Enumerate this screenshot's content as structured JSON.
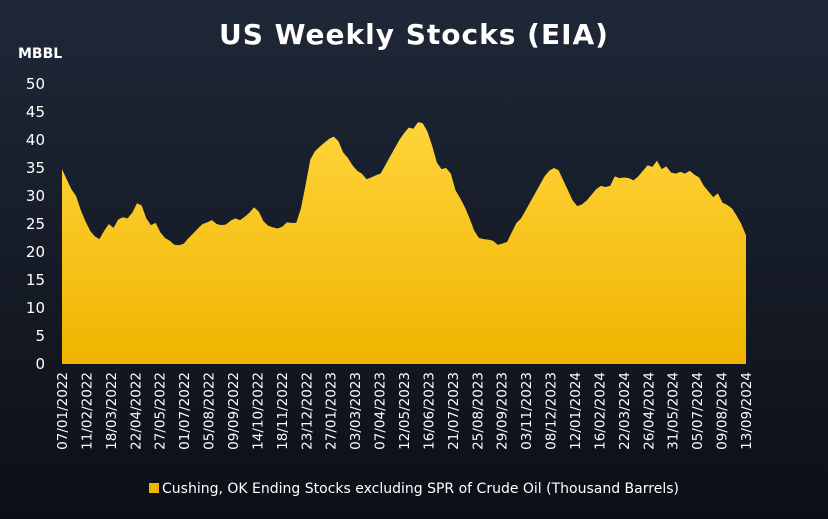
{
  "chart_data": {
    "type": "area",
    "title": "US Weekly Stocks (EIA)",
    "ylabel": "MBBL",
    "ylim": [
      0,
      50
    ],
    "yticks": [
      0,
      5,
      10,
      15,
      20,
      25,
      30,
      35,
      40,
      45,
      50
    ],
    "grid": false,
    "legend_position": "bottom",
    "colors": {
      "fill_top": "#ffd43a",
      "fill_bottom": "#f0b400",
      "background": "#141a26"
    },
    "xtick_labels": [
      "07/01/2022",
      "11/02/2022",
      "18/03/2022",
      "22/04/2022",
      "27/05/2022",
      "01/07/2022",
      "05/08/2022",
      "09/09/2022",
      "14/10/2022",
      "18/11/2022",
      "23/12/2022",
      "27/01/2023",
      "03/03/2023",
      "07/04/2023",
      "12/05/2023",
      "16/06/2023",
      "21/07/2023",
      "25/08/2023",
      "29/09/2023",
      "03/11/2023",
      "08/12/2023",
      "12/01/2024",
      "16/02/2024",
      "22/03/2024",
      "26/04/2024",
      "31/05/2024",
      "05/07/2024",
      "09/08/2024",
      "13/09/2024"
    ],
    "series": [
      {
        "name": "Cushing, OK Ending Stocks excluding SPR of Crude Oil (Thousand Barrels)",
        "values": [
          34.8,
          33.0,
          31.2,
          30.0,
          27.5,
          25.5,
          23.8,
          22.8,
          22.3,
          23.8,
          25.0,
          24.3,
          25.8,
          26.2,
          26.0,
          27.0,
          28.7,
          28.3,
          26.0,
          24.8,
          25.2,
          23.5,
          22.5,
          22.0,
          21.3,
          21.2,
          21.5,
          22.5,
          23.3,
          24.2,
          25.0,
          25.3,
          25.7,
          25.0,
          24.8,
          24.9,
          25.6,
          26.0,
          25.7,
          26.3,
          27.0,
          28.0,
          27.2,
          25.5,
          24.7,
          24.4,
          24.2,
          24.5,
          25.3,
          25.2,
          25.2,
          27.8,
          32.0,
          36.5,
          38.0,
          38.8,
          39.5,
          40.2,
          40.6,
          39.8,
          37.8,
          36.8,
          35.5,
          34.5,
          34.0,
          33.0,
          33.3,
          33.7,
          34.0,
          35.5,
          37.0,
          38.5,
          40.0,
          41.2,
          42.2,
          42.0,
          43.2,
          43.0,
          41.5,
          39.0,
          36.0,
          34.8,
          35.0,
          34.0,
          31.0,
          29.6,
          28.0,
          26.0,
          23.8,
          22.5,
          22.3,
          22.2,
          22.0,
          21.3,
          21.5,
          21.8,
          23.5,
          25.2,
          26.0,
          27.5,
          29.0,
          30.5,
          32.0,
          33.5,
          34.5,
          35.0,
          34.6,
          32.8,
          31.0,
          29.2,
          28.2,
          28.5,
          29.2,
          30.2,
          31.2,
          31.8,
          31.6,
          31.8,
          33.5,
          33.2,
          33.3,
          33.2,
          32.8,
          33.5,
          34.5,
          35.5,
          35.2,
          36.3,
          34.8,
          35.3,
          34.2,
          34.0,
          34.3,
          34.0,
          34.5,
          33.8,
          33.3,
          31.8,
          30.8,
          29.8,
          30.5,
          28.8,
          28.4,
          27.8,
          26.5,
          25.0,
          23.0
        ]
      }
    ]
  }
}
